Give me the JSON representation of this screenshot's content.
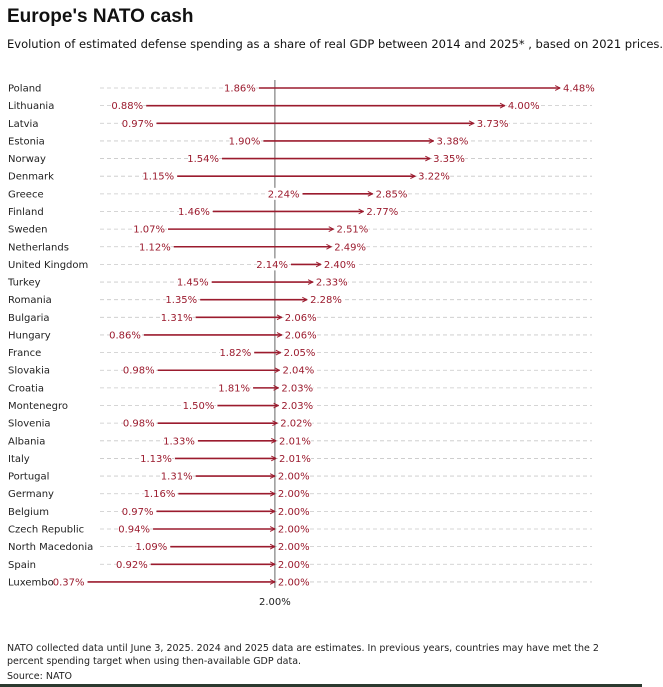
{
  "header": {
    "title": "Europe's NATO cash",
    "subtitle": "Evolution of estimated defense spending as a share of real GDP between 2014 and 2025* , based on 2021 prices."
  },
  "footer": {
    "note": "NATO collected data until June 3, 2025. 2024 and 2025 data are estimates. In previous years, countries may have met the 2 percent spending target when using then-available GDP data.",
    "source": "Source: NATO"
  },
  "colors": {
    "accent": "#9b1b2e",
    "text": "#222222",
    "gridline": "#c8c8c8",
    "reference": "#555555"
  },
  "chart_data": {
    "type": "dumbbell",
    "title": "Europe's NATO cash",
    "unit": "% of GDP",
    "series_labels": [
      "2014",
      "2025*"
    ],
    "reference_value": 2.0,
    "reference_label": "2.00%",
    "xlim": [
      0,
      4.48
    ],
    "rows": [
      {
        "country": "Poland",
        "start": 1.86,
        "end": 4.48,
        "start_label": "1.86%",
        "end_label": "4.48%"
      },
      {
        "country": "Lithuania",
        "start": 0.88,
        "end": 4.0,
        "start_label": "0.88%",
        "end_label": "4.00%"
      },
      {
        "country": "Latvia",
        "start": 0.97,
        "end": 3.73,
        "start_label": "0.97%",
        "end_label": "3.73%"
      },
      {
        "country": "Estonia",
        "start": 1.9,
        "end": 3.38,
        "start_label": "1.90%",
        "end_label": "3.38%"
      },
      {
        "country": "Norway",
        "start": 1.54,
        "end": 3.35,
        "start_label": "1.54%",
        "end_label": "3.35%"
      },
      {
        "country": "Denmark",
        "start": 1.15,
        "end": 3.22,
        "start_label": "1.15%",
        "end_label": "3.22%"
      },
      {
        "country": "Greece",
        "start": 2.24,
        "end": 2.85,
        "start_label": "2.24%",
        "end_label": "2.85%"
      },
      {
        "country": "Finland",
        "start": 1.46,
        "end": 2.77,
        "start_label": "1.46%",
        "end_label": "2.77%"
      },
      {
        "country": "Sweden",
        "start": 1.07,
        "end": 2.51,
        "start_label": "1.07%",
        "end_label": "2.51%"
      },
      {
        "country": "Netherlands",
        "start": 1.12,
        "end": 2.49,
        "start_label": "1.12%",
        "end_label": "2.49%"
      },
      {
        "country": "United Kingdom",
        "start": 2.14,
        "end": 2.4,
        "start_label": "2.14%",
        "end_label": "2.40%"
      },
      {
        "country": "Turkey",
        "start": 1.45,
        "end": 2.33,
        "start_label": "1.45%",
        "end_label": "2.33%"
      },
      {
        "country": "Romania",
        "start": 1.35,
        "end": 2.28,
        "start_label": "1.35%",
        "end_label": "2.28%"
      },
      {
        "country": "Bulgaria",
        "start": 1.31,
        "end": 2.06,
        "start_label": "1.31%",
        "end_label": "2.06%"
      },
      {
        "country": "Hungary",
        "start": 0.86,
        "end": 2.06,
        "start_label": "0.86%",
        "end_label": "2.06%"
      },
      {
        "country": "France",
        "start": 1.82,
        "end": 2.05,
        "start_label": "1.82%",
        "end_label": "2.05%"
      },
      {
        "country": "Slovakia",
        "start": 0.98,
        "end": 2.04,
        "start_label": "0.98%",
        "end_label": "2.04%"
      },
      {
        "country": "Croatia",
        "start": 1.81,
        "end": 2.03,
        "start_label": "1.81%",
        "end_label": "2.03%"
      },
      {
        "country": "Montenegro",
        "start": 1.5,
        "end": 2.03,
        "start_label": "1.50%",
        "end_label": "2.03%"
      },
      {
        "country": "Slovenia",
        "start": 0.98,
        "end": 2.02,
        "start_label": "0.98%",
        "end_label": "2.02%"
      },
      {
        "country": "Albania",
        "start": 1.33,
        "end": 2.01,
        "start_label": "1.33%",
        "end_label": "2.01%"
      },
      {
        "country": "Italy",
        "start": 1.13,
        "end": 2.01,
        "start_label": "1.13%",
        "end_label": "2.01%"
      },
      {
        "country": "Portugal",
        "start": 1.31,
        "end": 2.0,
        "start_label": "1.31%",
        "end_label": "2.00%"
      },
      {
        "country": "Germany",
        "start": 1.16,
        "end": 2.0,
        "start_label": "1.16%",
        "end_label": "2.00%"
      },
      {
        "country": "Belgium",
        "start": 0.97,
        "end": 2.0,
        "start_label": "0.97%",
        "end_label": "2.00%"
      },
      {
        "country": "Czech Republic",
        "start": 0.94,
        "end": 2.0,
        "start_label": "0.94%",
        "end_label": "2.00%"
      },
      {
        "country": "North Macedonia",
        "start": 1.09,
        "end": 2.0,
        "start_label": "1.09%",
        "end_label": "2.00%"
      },
      {
        "country": "Spain",
        "start": 0.92,
        "end": 2.0,
        "start_label": "0.92%",
        "end_label": "2.00%"
      },
      {
        "country": "Luxembourg",
        "start": 0.37,
        "end": 2.0,
        "start_label": "0.37%",
        "end_label": "2.00%"
      }
    ]
  }
}
